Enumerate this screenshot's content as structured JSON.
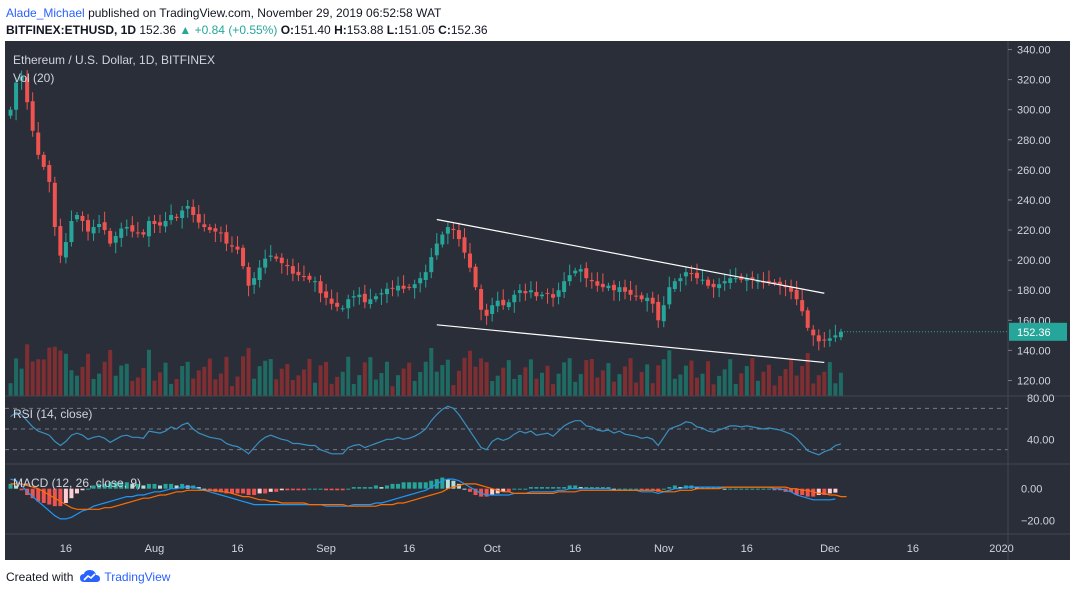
{
  "header": {
    "author": "Alade_Michael",
    "published": "published on TradingView.com, November 29, 2019 06:52:58 WAT",
    "symbol": "BITFINEX:ETHUSD, 1D",
    "last": "152.36",
    "change": "▲ +0.84 (+0.55%)",
    "o_label": "O:",
    "o_value": "151.40",
    "h_label": "H:",
    "h_value": "153.88",
    "l_label": "L:",
    "l_value": "151.05",
    "c_label": "C:",
    "c_value": "152.36"
  },
  "footer": {
    "created_with": "Created with",
    "brand": "TradingView"
  },
  "colors": {
    "background": "#2a2e39",
    "up": "#26a69a",
    "down": "#ef5350",
    "vol_up": "#1f6b64",
    "vol_down": "#7f2f31",
    "rsi": "#3a8fbf",
    "macd_line": "#2196f3",
    "signal_line": "#ff6d00",
    "trendline": "#ffffff",
    "axis_text": "#d1d4dc"
  },
  "chart_data": [
    {
      "type": "candlestick",
      "title": "Ethereum / U.S. Dollar, 1D, BITFINEX",
      "volume_label": "Vol (20)",
      "y_ticks": [
        "120.00",
        "140.00",
        "160.00",
        "180.00",
        "200.00",
        "220.00",
        "240.00",
        "260.00",
        "280.00",
        "300.00",
        "320.00",
        "340.00"
      ],
      "ylim": [
        115,
        343
      ],
      "last_price": "152.36",
      "x_ticks": [
        "16",
        "Aug",
        "16",
        "Sep",
        "16",
        "Oct",
        "16",
        "Nov",
        "16",
        "Dec",
        "16",
        "2020"
      ],
      "x_dates": [
        "2019-07-16",
        "2019-08-01",
        "2019-08-16",
        "2019-09-01",
        "2019-09-16",
        "2019-10-01",
        "2019-10-16",
        "2019-11-01",
        "2019-11-16",
        "2019-12-01",
        "2019-12-16",
        "2020-01-01"
      ],
      "start_date": "2019-07-06",
      "closes": [
        300,
        318,
        322,
        305,
        286,
        270,
        262,
        252,
        222,
        203,
        212,
        226,
        230,
        226,
        219,
        222,
        224,
        220,
        211,
        216,
        221,
        222,
        219,
        218,
        217,
        226,
        224,
        223,
        226,
        230,
        228,
        233,
        236,
        230,
        225,
        222,
        220,
        219,
        218,
        211,
        209,
        207,
        196,
        183,
        188,
        195,
        201,
        203,
        201,
        198,
        196,
        191,
        190,
        189,
        187,
        186,
        178,
        175,
        171,
        169,
        168,
        174,
        176,
        177,
        172,
        174,
        176,
        178,
        181,
        181,
        183,
        181,
        182,
        184,
        188,
        192,
        202,
        211,
        217,
        222,
        220,
        214,
        205,
        195,
        182,
        167,
        163,
        170,
        173,
        170,
        172,
        177,
        180,
        178,
        180,
        176,
        177,
        178,
        175,
        180,
        186,
        190,
        193,
        194,
        188,
        186,
        183,
        182,
        183,
        180,
        182,
        179,
        177,
        176,
        174,
        175,
        171,
        160,
        170,
        182,
        186,
        188,
        192,
        191,
        188,
        187,
        183,
        182,
        184,
        186,
        188,
        188,
        187,
        188,
        187,
        186,
        185,
        186,
        185,
        184,
        182,
        179,
        174,
        166,
        155,
        150,
        146,
        147,
        148,
        150,
        152.36
      ],
      "trendlines": [
        {
          "from": [
            "2019-09-21",
            227
          ],
          "to": [
            "2019-11-30",
            178
          ]
        },
        {
          "from": [
            "2019-09-21",
            157
          ],
          "to": [
            "2019-11-30",
            132
          ]
        }
      ]
    },
    {
      "type": "line",
      "title": "RSI (14, close)",
      "y_ticks": [
        "40.00",
        "80.00"
      ],
      "bands": [
        70,
        50,
        30
      ],
      "ylim": [
        20,
        80
      ],
      "values": [
        62,
        66,
        64,
        58,
        52,
        48,
        46,
        44,
        38,
        34,
        38,
        44,
        46,
        44,
        40,
        42,
        43,
        41,
        37,
        40,
        43,
        44,
        42,
        42,
        41,
        48,
        47,
        46,
        48,
        52,
        50,
        54,
        56,
        50,
        46,
        44,
        42,
        41,
        40,
        36,
        34,
        33,
        30,
        26,
        32,
        38,
        42,
        44,
        42,
        40,
        39,
        36,
        36,
        35,
        34,
        34,
        30,
        28,
        26,
        26,
        26,
        32,
        34,
        35,
        32,
        34,
        36,
        38,
        40,
        40,
        42,
        40,
        41,
        43,
        46,
        50,
        58,
        64,
        69,
        72,
        70,
        64,
        56,
        48,
        40,
        32,
        30,
        38,
        41,
        39,
        41,
        45,
        48,
        46,
        48,
        44,
        45,
        46,
        43,
        48,
        53,
        56,
        58,
        58,
        53,
        52,
        49,
        48,
        49,
        46,
        48,
        45,
        44,
        43,
        41,
        42,
        40,
        34,
        42,
        50,
        52,
        54,
        57,
        56,
        52,
        51,
        48,
        47,
        49,
        51,
        53,
        53,
        52,
        53,
        52,
        51,
        50,
        51,
        50,
        49,
        47,
        45,
        41,
        35,
        29,
        27,
        25,
        28,
        30,
        34,
        35.6
      ]
    },
    {
      "type": "macd",
      "title": "MACD (12, 26, close, 9)",
      "y_ticks": [
        "−20.00",
        "0.00"
      ],
      "ylim": [
        -26,
        13
      ],
      "macd": [
        6,
        5,
        2,
        -2,
        -5,
        -8,
        -11,
        -14,
        -17,
        -19,
        -19,
        -18,
        -16,
        -14,
        -13,
        -11,
        -10,
        -9,
        -8,
        -7,
        -6,
        -5,
        -5,
        -4,
        -4,
        -3,
        -2,
        -2,
        -1,
        0,
        0,
        1,
        1,
        1,
        0,
        -1,
        -2,
        -3,
        -4,
        -5,
        -6,
        -7,
        -8,
        -9,
        -10,
        -10,
        -10,
        -10,
        -10,
        -10,
        -10,
        -10,
        -10,
        -10,
        -10,
        -10,
        -10,
        -11,
        -11,
        -11,
        -11,
        -11,
        -10,
        -10,
        -10,
        -10,
        -9,
        -9,
        -8,
        -7,
        -6,
        -5,
        -4,
        -3,
        -2,
        -1,
        1,
        3,
        5,
        6,
        6,
        5,
        3,
        1,
        -1,
        -3,
        -4,
        -4,
        -4,
        -4,
        -4,
        -3,
        -3,
        -3,
        -2,
        -2,
        -2,
        -2,
        -2,
        -1,
        -1,
        0,
        0,
        0,
        0,
        0,
        0,
        0,
        0,
        -1,
        -1,
        -1,
        -1,
        -1,
        -2,
        -2,
        -2,
        -3,
        -2,
        -1,
        0,
        0,
        1,
        1,
        1,
        1,
        1,
        1,
        1,
        1,
        1,
        1,
        1,
        1,
        1,
        1,
        1,
        1,
        0,
        0,
        -1,
        -2,
        -4,
        -5,
        -6,
        -7,
        -7,
        -7,
        -7,
        -6.5
      ],
      "signal": [
        3,
        3,
        3,
        2,
        1,
        0,
        -2,
        -4,
        -6,
        -8,
        -10,
        -12,
        -13,
        -13,
        -13,
        -13,
        -13,
        -12,
        -12,
        -11,
        -10,
        -9,
        -8,
        -7,
        -6,
        -6,
        -5,
        -4,
        -4,
        -3,
        -2,
        -2,
        -1,
        -1,
        -1,
        -1,
        -1,
        -1,
        -2,
        -2,
        -3,
        -4,
        -5,
        -5,
        -6,
        -7,
        -7,
        -8,
        -8,
        -9,
        -9,
        -9,
        -9,
        -9,
        -10,
        -10,
        -10,
        -10,
        -10,
        -10,
        -10,
        -11,
        -11,
        -11,
        -11,
        -11,
        -11,
        -10,
        -10,
        -10,
        -9,
        -9,
        -8,
        -7,
        -6,
        -5,
        -4,
        -3,
        -2,
        0,
        1,
        2,
        3,
        3,
        3,
        2,
        1,
        0,
        -1,
        -2,
        -2,
        -3,
        -3,
        -3,
        -3,
        -3,
        -3,
        -3,
        -3,
        -2,
        -2,
        -2,
        -2,
        -1,
        -1,
        -1,
        -1,
        -1,
        -1,
        -1,
        -1,
        -1,
        -1,
        -1,
        -1,
        -1,
        -1,
        -1,
        -2,
        -2,
        -2,
        -1,
        -1,
        -1,
        0,
        0,
        0,
        0,
        0,
        1,
        1,
        1,
        1,
        1,
        1,
        1,
        1,
        1,
        1,
        1,
        1,
        0,
        0,
        -1,
        -1,
        -2,
        -3,
        -3,
        -4,
        -4,
        -5,
        -5
      ]
    }
  ]
}
